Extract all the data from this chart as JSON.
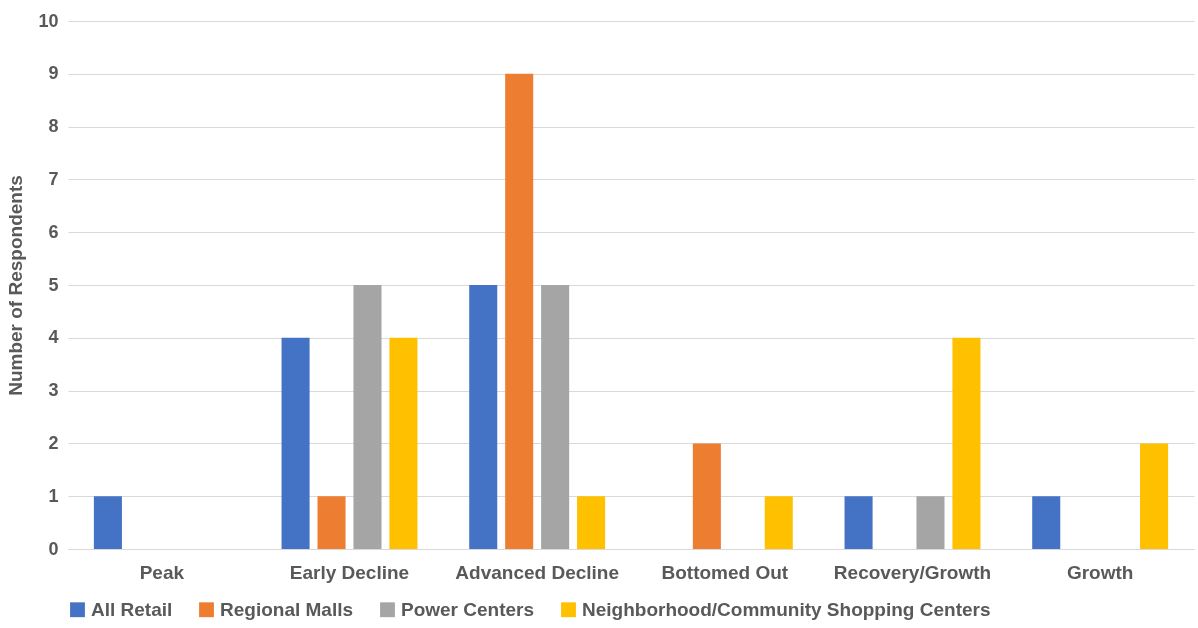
{
  "chart_data": {
    "type": "bar",
    "ylabel": "Number of Respondents",
    "categories": [
      "Peak",
      "Early Decline",
      "Advanced Decline",
      "Bottomed Out",
      "Recovery/Growth",
      "Growth"
    ],
    "series": [
      {
        "name": "All Retail",
        "color": "#4472c4",
        "values": [
          1,
          4,
          5,
          0,
          1,
          1
        ]
      },
      {
        "name": "Regional Malls",
        "color": "#ed7d31",
        "values": [
          0,
          1,
          9,
          2,
          0,
          0
        ]
      },
      {
        "name": "Power Centers",
        "color": "#a5a5a5",
        "values": [
          0,
          5,
          5,
          0,
          1,
          0
        ]
      },
      {
        "name": "Neighborhood/Community Shopping Centers",
        "color": "#ffc000",
        "values": [
          0,
          4,
          1,
          1,
          4,
          2
        ]
      }
    ],
    "ylim": [
      0,
      10
    ],
    "yticks": [
      0,
      1,
      2,
      3,
      4,
      5,
      6,
      7,
      8,
      9,
      10
    ],
    "grid": "y",
    "legend": "bottom"
  }
}
